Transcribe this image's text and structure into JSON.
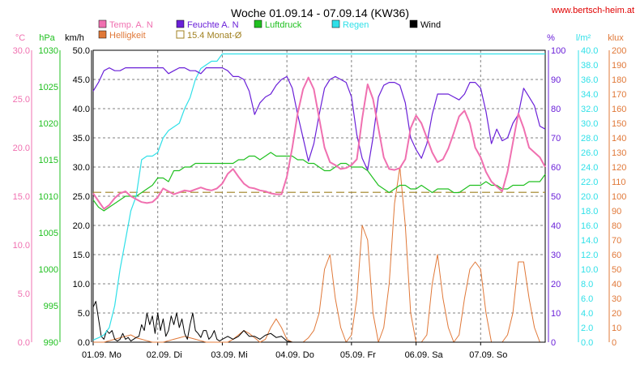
{
  "title": "Woche 01.09.14 - 07.09.14 (KW36)",
  "website": "www.bertsch-heim.at",
  "colors": {
    "temp": "#f070b0",
    "feuchte": "#6a20d8",
    "luftdruck": "#20c020",
    "regen": "#30e0e8",
    "wind": "#000000",
    "helligkeit": "#e07838",
    "monat_avg": "#a08020",
    "website": "#e00000",
    "grid": "#808080"
  },
  "chart_data": {
    "type": "line",
    "title": "Woche 01.09.14 - 07.09.14 (KW36)",
    "x_unit": "hours since 01.09. 00:00",
    "x_range": [
      0,
      168
    ],
    "x_ticks": [
      {
        "label": "01.09.  Mo",
        "x": 0
      },
      {
        "label": "02.09.  Di",
        "x": 24
      },
      {
        "label": "03.09.  Mi",
        "x": 48
      },
      {
        "label": "04.09.  Do",
        "x": 72
      },
      {
        "label": "05.09.  Fr",
        "x": 96
      },
      {
        "label": "06.09.  Sa",
        "x": 120
      },
      {
        "label": "07.09.  So",
        "x": 144
      }
    ],
    "grid": true,
    "legend": [
      {
        "key": "temp",
        "label": "Temp. A. N"
      },
      {
        "key": "feuchte",
        "label": "Feuchte A. N"
      },
      {
        "key": "luftdruck",
        "label": "Luftdruck"
      },
      {
        "key": "regen",
        "label": "Regen"
      },
      {
        "key": "wind",
        "label": "Wind"
      },
      {
        "key": "helligkeit",
        "label": "Helligkeit"
      },
      {
        "key": "monat_avg",
        "label": "15.4 Monat-Ø"
      }
    ],
    "axes": {
      "temp": {
        "unit": "°C",
        "range": [
          0,
          30
        ],
        "ticks": [
          "0.0",
          "5.0",
          "10.0",
          "15.0",
          "20.0",
          "25.0",
          "30.0"
        ]
      },
      "luftdruck": {
        "unit": "hPa",
        "range": [
          990,
          1030
        ],
        "ticks": [
          "990",
          "995",
          "1000",
          "1005",
          "1010",
          "1015",
          "1020",
          "1025",
          "1030"
        ]
      },
      "wind": {
        "unit": "km/h",
        "range": [
          0,
          50
        ],
        "ticks": [
          "0.0",
          "5.0",
          "10.0",
          "15.0",
          "20.0",
          "25.0",
          "30.0",
          "35.0",
          "40.0",
          "45.0",
          "50.0"
        ]
      },
      "feuchte": {
        "unit": "%",
        "range": [
          0,
          100
        ],
        "ticks": [
          "0",
          "10",
          "20",
          "30",
          "40",
          "50",
          "60",
          "70",
          "80",
          "90",
          "100"
        ]
      },
      "regen": {
        "unit": "l/m²",
        "range": [
          0,
          40
        ],
        "ticks": [
          "0.0",
          "2.0",
          "4.0",
          "6.0",
          "8.0",
          "10.0",
          "12.0",
          "14.0",
          "16.0",
          "18.0",
          "20.0",
          "22.0",
          "24.0",
          "26.0",
          "28.0",
          "30.0",
          "32.0",
          "34.0",
          "36.0",
          "38.0",
          "40.0"
        ]
      },
      "helligkeit": {
        "unit": "klux",
        "range": [
          0,
          200
        ],
        "ticks": [
          "0",
          "10",
          "20",
          "30",
          "40",
          "50",
          "60",
          "70",
          "80",
          "90",
          "100",
          "110",
          "120",
          "130",
          "140",
          "150",
          "160",
          "170",
          "180",
          "190",
          "200"
        ]
      }
    },
    "monat_avg_value": 15.4,
    "series": [
      {
        "key": "temp",
        "name": "Temp. A. N",
        "axis": "temp",
        "x": [
          0,
          2,
          4,
          6,
          8,
          10,
          12,
          14,
          16,
          18,
          20,
          22,
          24,
          26,
          28,
          30,
          32,
          34,
          36,
          38,
          40,
          42,
          44,
          46,
          48,
          50,
          52,
          54,
          56,
          58,
          60,
          62,
          64,
          66,
          68,
          70,
          72,
          74,
          76,
          78,
          80,
          82,
          84,
          86,
          88,
          90,
          92,
          94,
          96,
          98,
          100,
          102,
          104,
          106,
          108,
          110,
          112,
          114,
          116,
          118,
          120,
          122,
          124,
          126,
          128,
          130,
          132,
          134,
          136,
          138,
          140,
          142,
          144,
          146,
          148,
          150,
          152,
          154,
          156,
          158,
          160,
          162,
          164,
          166,
          168
        ],
        "y": [
          15.3,
          14.5,
          13.7,
          14.1,
          14.8,
          15.3,
          15.5,
          15.0,
          14.7,
          14.4,
          14.3,
          14.4,
          14.9,
          15.8,
          15.5,
          15.2,
          15.4,
          15.6,
          15.5,
          15.7,
          15.9,
          15.7,
          15.6,
          15.8,
          16.3,
          17.3,
          17.8,
          17.0,
          16.3,
          15.9,
          15.8,
          15.6,
          15.5,
          15.3,
          15.2,
          15.2,
          17.0,
          20.0,
          23.5,
          26.0,
          27.2,
          26.0,
          23.0,
          20.0,
          18.5,
          18.2,
          17.8,
          17.9,
          18.2,
          18.8,
          23.0,
          26.5,
          25.0,
          22.0,
          19.0,
          17.8,
          17.7,
          17.9,
          18.8,
          22.0,
          23.3,
          22.5,
          21.0,
          19.5,
          18.5,
          18.8,
          19.9,
          21.5,
          23.2,
          23.8,
          22.5,
          20.0,
          19.0,
          17.5,
          16.5,
          16.0,
          15.5,
          17.5,
          20.5,
          23.5,
          22.0,
          20.0,
          19.5,
          19.0,
          18.0
        ]
      },
      {
        "key": "feuchte",
        "name": "Feuchte A. N",
        "axis": "feuchte",
        "x": [
          0,
          2,
          4,
          6,
          8,
          10,
          12,
          14,
          16,
          18,
          20,
          22,
          24,
          26,
          28,
          30,
          32,
          34,
          36,
          38,
          40,
          42,
          44,
          46,
          48,
          50,
          52,
          54,
          56,
          58,
          60,
          62,
          64,
          66,
          68,
          70,
          72,
          74,
          76,
          78,
          80,
          82,
          84,
          86,
          88,
          90,
          92,
          94,
          96,
          98,
          100,
          102,
          104,
          106,
          108,
          110,
          112,
          114,
          116,
          118,
          120,
          122,
          124,
          126,
          128,
          130,
          132,
          134,
          136,
          138,
          140,
          142,
          144,
          146,
          148,
          150,
          152,
          154,
          156,
          158,
          160,
          162,
          164,
          166,
          168
        ],
        "y": [
          86,
          89,
          93,
          94,
          93,
          93,
          94,
          94,
          94,
          94,
          94,
          94,
          94,
          94,
          92,
          93,
          94,
          94,
          93,
          93,
          92,
          94,
          94,
          94,
          94,
          93,
          91,
          91,
          90,
          86,
          78,
          82,
          84,
          85,
          88,
          90,
          91,
          87,
          78,
          70,
          62,
          68,
          78,
          87,
          90,
          91,
          90,
          89,
          84,
          71,
          63,
          59,
          70,
          84,
          88,
          89,
          89,
          88,
          82,
          70,
          66,
          63,
          68,
          78,
          85,
          85,
          85,
          84,
          83,
          85,
          89,
          89,
          87,
          79,
          68,
          73,
          69,
          70,
          75,
          78,
          87,
          84,
          81,
          74,
          73
        ]
      },
      {
        "key": "luftdruck",
        "name": "Luftdruck",
        "axis": "luftdruck",
        "x": [
          0,
          2,
          4,
          6,
          8,
          10,
          12,
          14,
          16,
          18,
          20,
          22,
          24,
          26,
          28,
          30,
          32,
          34,
          36,
          38,
          40,
          42,
          44,
          46,
          48,
          50,
          52,
          54,
          56,
          58,
          60,
          62,
          64,
          66,
          68,
          70,
          72,
          74,
          76,
          78,
          80,
          82,
          84,
          86,
          88,
          90,
          92,
          94,
          96,
          98,
          100,
          102,
          104,
          106,
          108,
          110,
          112,
          114,
          116,
          118,
          120,
          122,
          124,
          126,
          128,
          130,
          132,
          134,
          136,
          138,
          140,
          142,
          144,
          146,
          148,
          150,
          152,
          154,
          156,
          158,
          160,
          162,
          164,
          166,
          168
        ],
        "y": [
          1009.5,
          1008.5,
          1008.0,
          1008.5,
          1009.0,
          1009.5,
          1010.0,
          1010.0,
          1010.0,
          1010.5,
          1011.0,
          1011.5,
          1012.5,
          1012.5,
          1012.0,
          1013.5,
          1013.5,
          1014.0,
          1014.0,
          1014.5,
          1014.5,
          1014.5,
          1014.5,
          1014.5,
          1014.5,
          1014.5,
          1014.5,
          1015.0,
          1015.0,
          1015.5,
          1015.5,
          1015.0,
          1015.5,
          1016.0,
          1015.5,
          1015.5,
          1015.5,
          1015.5,
          1015.0,
          1015.0,
          1014.5,
          1014.5,
          1014.0,
          1013.5,
          1013.5,
          1014.0,
          1014.5,
          1014.5,
          1014.0,
          1014.0,
          1014.0,
          1013.5,
          1012.5,
          1011.5,
          1011.0,
          1010.5,
          1011.0,
          1011.5,
          1011.5,
          1011.0,
          1011.0,
          1011.5,
          1011.0,
          1010.5,
          1011.0,
          1011.0,
          1011.0,
          1010.5,
          1010.5,
          1011.0,
          1011.5,
          1011.5,
          1011.5,
          1012.0,
          1011.5,
          1011.5,
          1011.0,
          1011.0,
          1011.5,
          1011.5,
          1011.5,
          1012.0,
          1012.0,
          1012.0,
          1013.0
        ]
      },
      {
        "key": "regen",
        "name": "Regen",
        "axis": "regen",
        "x": [
          0,
          2,
          4,
          6,
          8,
          10,
          12,
          14,
          16,
          18,
          20,
          22,
          24,
          26,
          28,
          30,
          32,
          34,
          36,
          38,
          40,
          42,
          44,
          46,
          48,
          50,
          52,
          54,
          56,
          58,
          60,
          168
        ],
        "y": [
          0.3,
          0.6,
          1.0,
          2.0,
          5.0,
          10.0,
          14.0,
          18.0,
          20.0,
          25.0,
          25.5,
          25.5,
          26.0,
          28.0,
          29.0,
          29.5,
          30.0,
          32.0,
          33.5,
          36.0,
          37.5,
          38.0,
          38.5,
          38.5,
          39.5,
          39.5,
          39.5,
          39.5,
          39.5,
          39.5,
          39.5,
          39.5
        ]
      },
      {
        "key": "wind",
        "name": "Wind",
        "axis": "wind",
        "x": [
          0,
          1,
          2,
          3,
          4,
          5,
          6,
          7,
          8,
          9,
          10,
          11,
          12,
          13,
          14,
          15,
          16,
          17,
          18,
          19,
          20,
          21,
          22,
          23,
          24,
          25,
          26,
          27,
          28,
          29,
          30,
          31,
          32,
          33,
          34,
          35,
          36,
          37,
          38,
          39,
          40,
          41,
          42,
          43,
          44,
          45,
          46,
          47,
          48,
          50,
          52,
          54,
          56,
          58,
          60,
          62,
          64,
          66,
          68,
          70,
          72,
          74,
          76,
          78,
          80,
          82,
          84,
          86,
          88,
          90,
          92,
          94,
          96,
          98,
          100,
          102,
          104,
          106,
          108,
          110,
          112,
          114,
          116,
          118,
          120,
          122,
          124,
          126,
          128,
          130,
          132,
          134,
          136,
          138,
          140,
          142,
          144,
          146,
          148,
          150,
          152,
          154,
          156,
          158,
          160,
          162,
          164,
          166,
          168
        ],
        "y": [
          6.0,
          7.0,
          4.0,
          1.0,
          0.5,
          2.0,
          1.5,
          2.0,
          0.5,
          0.2,
          0.5,
          1.5,
          0.5,
          0.8,
          0.2,
          0.5,
          0.8,
          1.0,
          3.0,
          2.0,
          5.0,
          3.0,
          4.5,
          1.5,
          5.0,
          2.0,
          4.0,
          1.0,
          2.0,
          4.5,
          3.0,
          5.0,
          2.5,
          4.0,
          1.5,
          0.5,
          3.0,
          5.0,
          2.0,
          1.5,
          0.8,
          2.0,
          2.0,
          0.5,
          1.0,
          2.0,
          0.5,
          0.2,
          0.5,
          1.0,
          0.5,
          1.0,
          2.0,
          1.0,
          1.0,
          0.5,
          1.2,
          1.5,
          0.8,
          1.0,
          0.2,
          0,
          0,
          0,
          0,
          0,
          0,
          0,
          0,
          0,
          0,
          0,
          0,
          0,
          0,
          0,
          0,
          0,
          0,
          0,
          0,
          0,
          0,
          0,
          0,
          0,
          0,
          0,
          0,
          0,
          0,
          0,
          0,
          0,
          0,
          0,
          0,
          0,
          0,
          0,
          0,
          0,
          0,
          0,
          0,
          0,
          0,
          0,
          0
        ]
      },
      {
        "key": "helligkeit",
        "name": "Helligkeit",
        "axis": "helligkeit",
        "x": [
          0,
          2,
          4,
          6,
          8,
          10,
          12,
          14,
          16,
          18,
          20,
          22,
          24,
          26,
          28,
          30,
          32,
          34,
          36,
          38,
          40,
          42,
          44,
          46,
          48,
          50,
          52,
          54,
          56,
          58,
          60,
          62,
          64,
          66,
          68,
          70,
          72,
          74,
          76,
          78,
          80,
          82,
          84,
          86,
          88,
          90,
          92,
          94,
          96,
          98,
          100,
          102,
          104,
          106,
          108,
          110,
          112,
          114,
          116,
          118,
          120,
          122,
          124,
          126,
          128,
          130,
          132,
          134,
          136,
          138,
          140,
          142,
          144,
          146,
          148,
          150,
          152,
          154,
          156,
          158,
          160,
          162,
          164,
          166,
          168
        ],
        "y": [
          0,
          0,
          0,
          1,
          2,
          3,
          4,
          5,
          3,
          2,
          1,
          0,
          0,
          0,
          1,
          2,
          3,
          4,
          3,
          2,
          1,
          0,
          0,
          0,
          0,
          0,
          2,
          5,
          8,
          6,
          3,
          0,
          2,
          10,
          16,
          10,
          2,
          0,
          0,
          0,
          3,
          8,
          20,
          50,
          60,
          30,
          10,
          0,
          5,
          30,
          80,
          70,
          20,
          0,
          10,
          40,
          95,
          120,
          80,
          20,
          0,
          0,
          5,
          40,
          60,
          30,
          10,
          0,
          5,
          30,
          50,
          55,
          50,
          20,
          0,
          0,
          0,
          5,
          20,
          55,
          55,
          30,
          10,
          0,
          0
        ]
      }
    ]
  }
}
